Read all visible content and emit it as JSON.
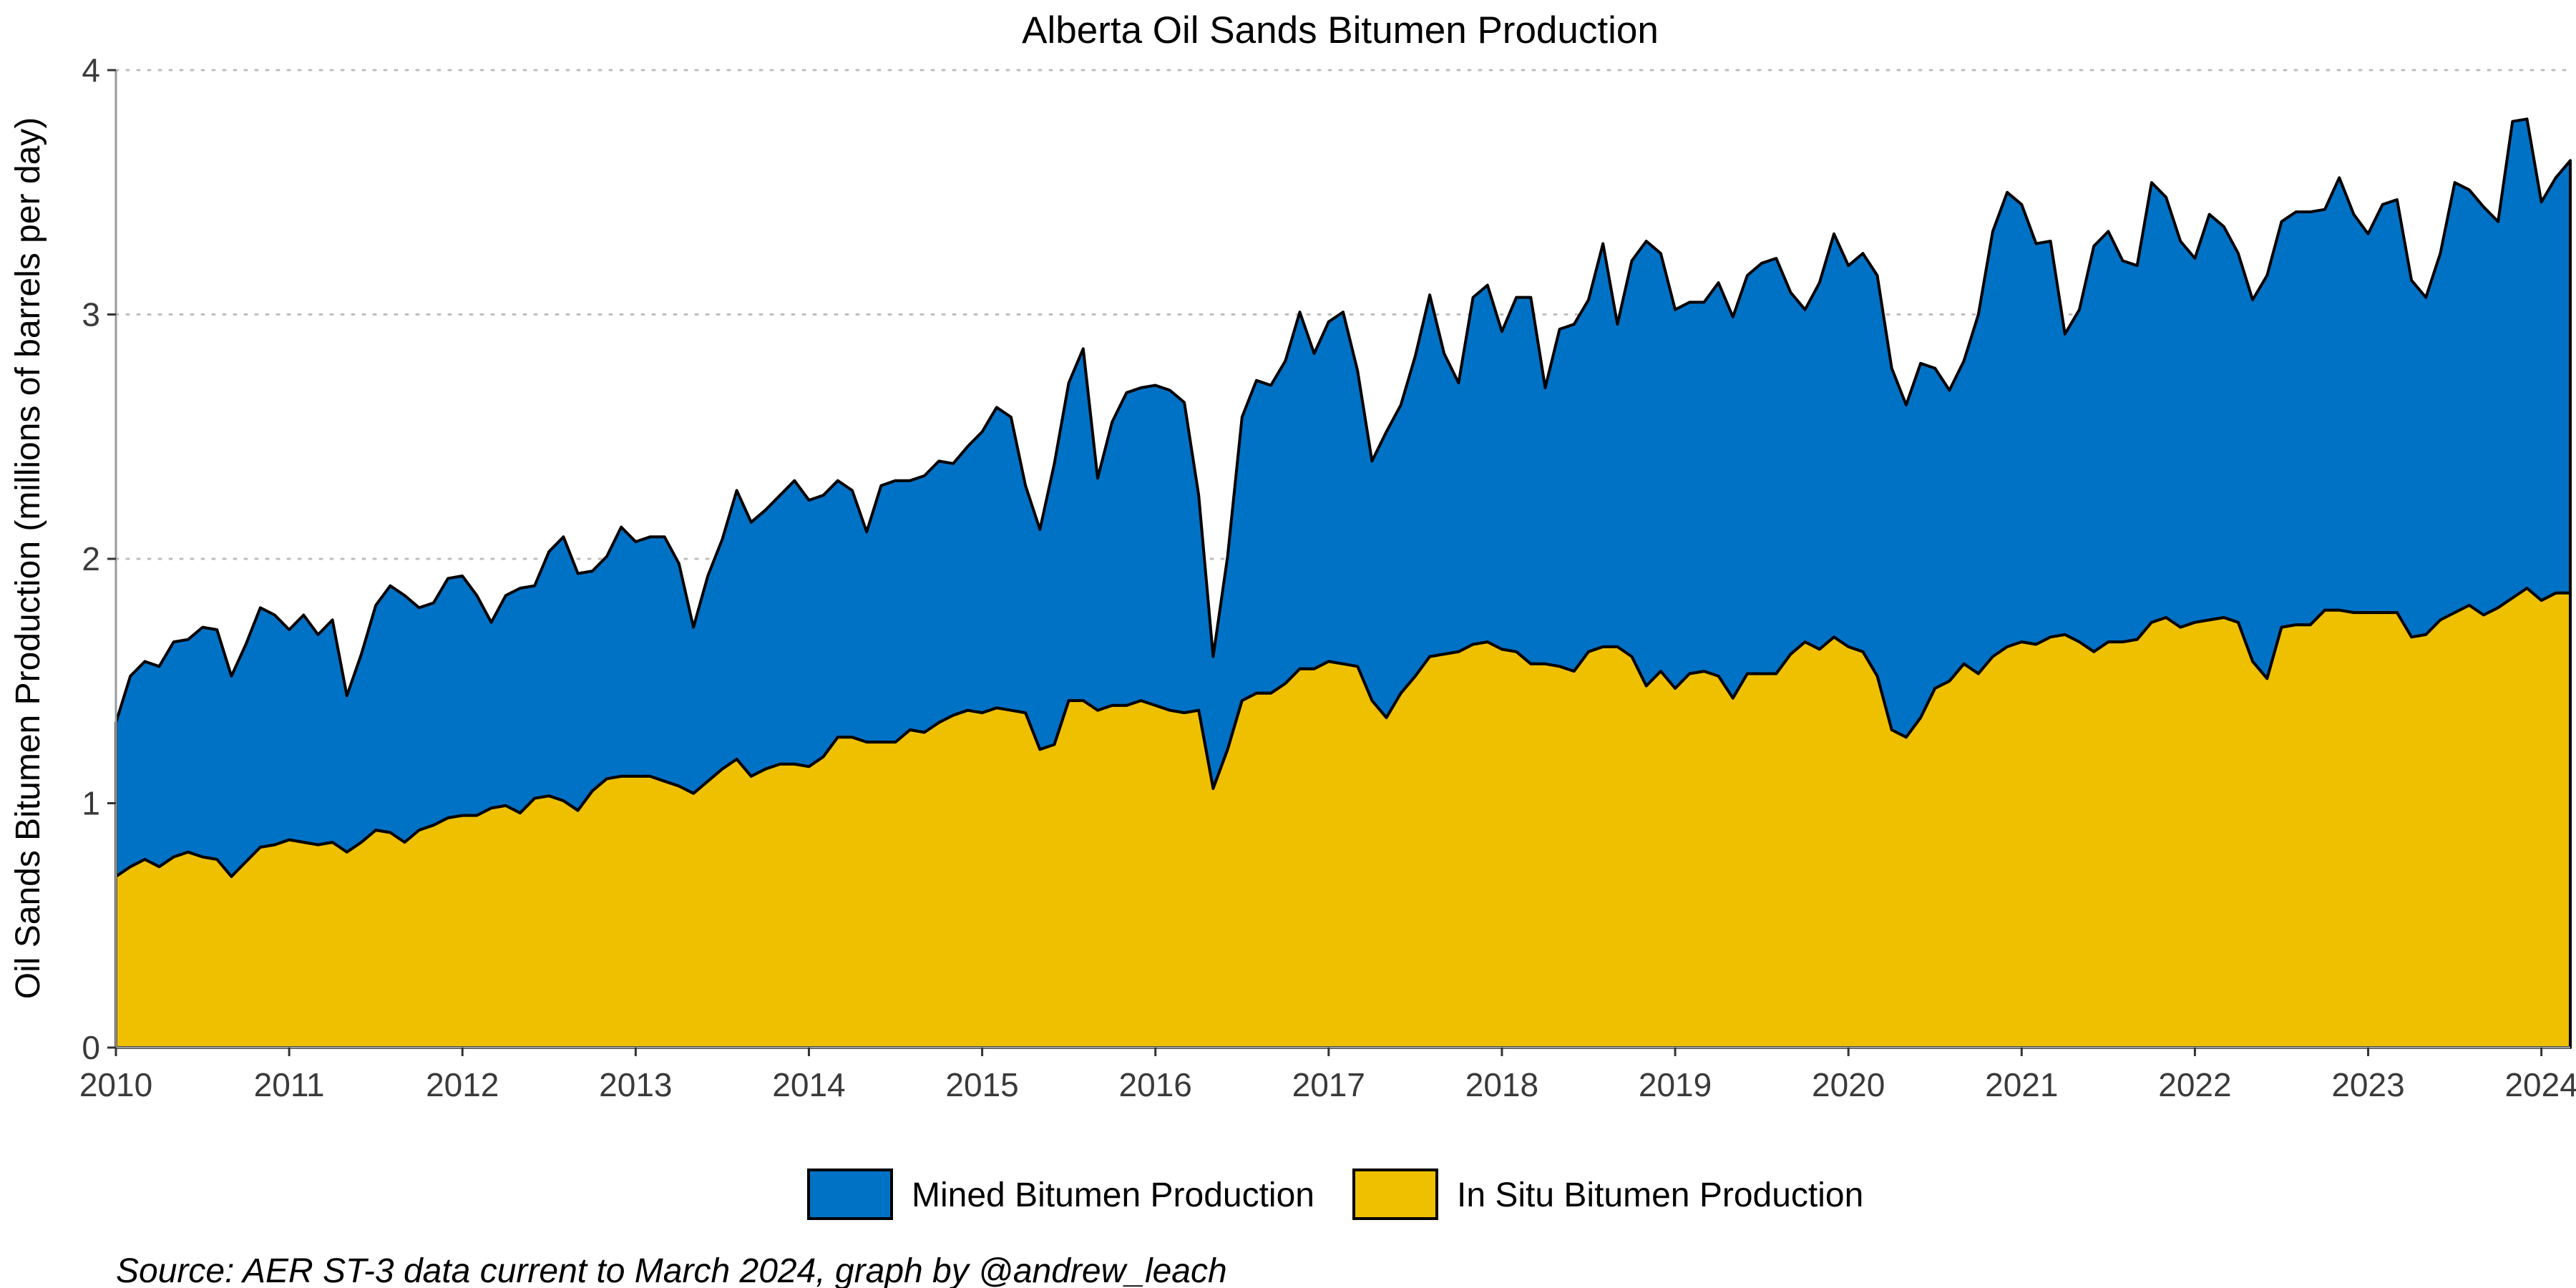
{
  "chart_data": {
    "type": "area",
    "stacked": true,
    "title": "Alberta Oil Sands Bitumen Production",
    "xlabel": "",
    "ylabel": "Oil Sands Bitumen Production (millions of barrels per day)",
    "xlim": [
      "2010-01",
      "2024-03"
    ],
    "ylim": [
      0,
      4
    ],
    "x_ticks": [
      "2010",
      "2011",
      "2012",
      "2013",
      "2014",
      "2015",
      "2016",
      "2017",
      "2018",
      "2019",
      "2020",
      "2021",
      "2022",
      "2023",
      "2024"
    ],
    "y_ticks": [
      "0",
      "1",
      "2",
      "3",
      "4"
    ],
    "grid": "horizontal dotted",
    "legend_position": "bottom",
    "legend": [
      "Mined Bitumen Production",
      "In Situ Bitumen Production"
    ],
    "caption": "Source: AER ST-3 data current to March 2024, graph by @andrew_leach",
    "colors": {
      "mined": "#0072C6",
      "in_situ": "#EFC000"
    },
    "x": [
      "2010-01",
      "2010-02",
      "2010-03",
      "2010-04",
      "2010-05",
      "2010-06",
      "2010-07",
      "2010-08",
      "2010-09",
      "2010-10",
      "2010-11",
      "2010-12",
      "2011-01",
      "2011-02",
      "2011-03",
      "2011-04",
      "2011-05",
      "2011-06",
      "2011-07",
      "2011-08",
      "2011-09",
      "2011-10",
      "2011-11",
      "2011-12",
      "2012-01",
      "2012-02",
      "2012-03",
      "2012-04",
      "2012-05",
      "2012-06",
      "2012-07",
      "2012-08",
      "2012-09",
      "2012-10",
      "2012-11",
      "2012-12",
      "2013-01",
      "2013-02",
      "2013-03",
      "2013-04",
      "2013-05",
      "2013-06",
      "2013-07",
      "2013-08",
      "2013-09",
      "2013-10",
      "2013-11",
      "2013-12",
      "2014-01",
      "2014-02",
      "2014-03",
      "2014-04",
      "2014-05",
      "2014-06",
      "2014-07",
      "2014-08",
      "2014-09",
      "2014-10",
      "2014-11",
      "2014-12",
      "2015-01",
      "2015-02",
      "2015-03",
      "2015-04",
      "2015-05",
      "2015-06",
      "2015-07",
      "2015-08",
      "2015-09",
      "2015-10",
      "2015-11",
      "2015-12",
      "2016-01",
      "2016-02",
      "2016-03",
      "2016-04",
      "2016-05",
      "2016-06",
      "2016-07",
      "2016-08",
      "2016-09",
      "2016-10",
      "2016-11",
      "2016-12",
      "2017-01",
      "2017-02",
      "2017-03",
      "2017-04",
      "2017-05",
      "2017-06",
      "2017-07",
      "2017-08",
      "2017-09",
      "2017-10",
      "2017-11",
      "2017-12",
      "2018-01",
      "2018-02",
      "2018-03",
      "2018-04",
      "2018-05",
      "2018-06",
      "2018-07",
      "2018-08",
      "2018-09",
      "2018-10",
      "2018-11",
      "2018-12",
      "2019-01",
      "2019-02",
      "2019-03",
      "2019-04",
      "2019-05",
      "2019-06",
      "2019-07",
      "2019-08",
      "2019-09",
      "2019-10",
      "2019-11",
      "2019-12",
      "2020-01",
      "2020-02",
      "2020-03",
      "2020-04",
      "2020-05",
      "2020-06",
      "2020-07",
      "2020-08",
      "2020-09",
      "2020-10",
      "2020-11",
      "2020-12",
      "2021-01",
      "2021-02",
      "2021-03",
      "2021-04",
      "2021-05",
      "2021-06",
      "2021-07",
      "2021-08",
      "2021-09",
      "2021-10",
      "2021-11",
      "2021-12",
      "2022-01",
      "2022-02",
      "2022-03",
      "2022-04",
      "2022-05",
      "2022-06",
      "2022-07",
      "2022-08",
      "2022-09",
      "2022-10",
      "2022-11",
      "2022-12",
      "2023-01",
      "2023-02",
      "2023-03",
      "2023-04",
      "2023-05",
      "2023-06",
      "2023-07",
      "2023-08",
      "2023-09",
      "2023-10",
      "2023-11",
      "2023-12",
      "2024-01",
      "2024-02",
      "2024-03"
    ],
    "series": [
      {
        "name": "In Situ Bitumen Production",
        "values": [
          0.7,
          0.74,
          0.77,
          0.74,
          0.78,
          0.8,
          0.78,
          0.77,
          0.7,
          0.76,
          0.82,
          0.83,
          0.85,
          0.84,
          0.83,
          0.84,
          0.8,
          0.84,
          0.89,
          0.88,
          0.84,
          0.89,
          0.91,
          0.94,
          0.95,
          0.95,
          0.98,
          0.99,
          0.96,
          1.02,
          1.03,
          1.01,
          0.97,
          1.05,
          1.1,
          1.11,
          1.11,
          1.11,
          1.09,
          1.07,
          1.04,
          1.09,
          1.14,
          1.18,
          1.11,
          1.14,
          1.16,
          1.16,
          1.15,
          1.19,
          1.27,
          1.27,
          1.25,
          1.25,
          1.25,
          1.3,
          1.29,
          1.33,
          1.36,
          1.38,
          1.37,
          1.39,
          1.38,
          1.37,
          1.22,
          1.24,
          1.42,
          1.42,
          1.38,
          1.4,
          1.4,
          1.42,
          1.4,
          1.38,
          1.37,
          1.38,
          1.06,
          1.22,
          1.42,
          1.45,
          1.45,
          1.49,
          1.55,
          1.55,
          1.58,
          1.57,
          1.56,
          1.42,
          1.35,
          1.45,
          1.52,
          1.6,
          1.61,
          1.62,
          1.65,
          1.66,
          1.63,
          1.62,
          1.57,
          1.57,
          1.56,
          1.54,
          1.62,
          1.64,
          1.64,
          1.6,
          1.48,
          1.54,
          1.47,
          1.53,
          1.54,
          1.52,
          1.43,
          1.53,
          1.53,
          1.53,
          1.61,
          1.66,
          1.63,
          1.68,
          1.64,
          1.62,
          1.52,
          1.3,
          1.27,
          1.35,
          1.47,
          1.5,
          1.57,
          1.53,
          1.6,
          1.64,
          1.66,
          1.65,
          1.68,
          1.69,
          1.66,
          1.62,
          1.66,
          1.66,
          1.67,
          1.74,
          1.76,
          1.72,
          1.74,
          1.75,
          1.76,
          1.74,
          1.58,
          1.51,
          1.72,
          1.73,
          1.73,
          1.79,
          1.79,
          1.78,
          1.78,
          1.78,
          1.78,
          1.68,
          1.69,
          1.75,
          1.78,
          1.81,
          1.77,
          1.8,
          1.84,
          1.88,
          1.83,
          1.86,
          1.86
        ]
      },
      {
        "name": "Mined Bitumen Production",
        "values": [
          0.63,
          0.78,
          0.81,
          0.82,
          0.88,
          0.87,
          0.94,
          0.94,
          0.82,
          0.89,
          0.98,
          0.94,
          0.86,
          0.93,
          0.86,
          0.91,
          0.64,
          0.77,
          0.92,
          1.01,
          1.01,
          0.91,
          0.91,
          0.98,
          0.98,
          0.9,
          0.76,
          0.86,
          0.92,
          0.87,
          1.0,
          1.08,
          0.97,
          0.9,
          0.91,
          1.02,
          0.96,
          0.98,
          1.0,
          0.91,
          0.68,
          0.84,
          0.94,
          1.1,
          1.04,
          1.06,
          1.1,
          1.16,
          1.09,
          1.07,
          1.05,
          1.01,
          0.86,
          1.05,
          1.07,
          1.02,
          1.05,
          1.07,
          1.03,
          1.08,
          1.15,
          1.23,
          1.2,
          0.93,
          0.9,
          1.15,
          1.3,
          1.44,
          0.95,
          1.16,
          1.28,
          1.28,
          1.31,
          1.31,
          1.27,
          0.88,
          0.54,
          0.79,
          1.16,
          1.28,
          1.26,
          1.32,
          1.46,
          1.29,
          1.39,
          1.44,
          1.21,
          0.98,
          1.17,
          1.18,
          1.31,
          1.48,
          1.23,
          1.1,
          1.42,
          1.46,
          1.3,
          1.45,
          1.5,
          1.13,
          1.38,
          1.42,
          1.44,
          1.65,
          1.32,
          1.62,
          1.82,
          1.71,
          1.55,
          1.52,
          1.51,
          1.61,
          1.56,
          1.63,
          1.68,
          1.7,
          1.48,
          1.36,
          1.5,
          1.65,
          1.56,
          1.63,
          1.64,
          1.48,
          1.36,
          1.45,
          1.31,
          1.19,
          1.24,
          1.47,
          1.74,
          1.86,
          1.79,
          1.64,
          1.62,
          1.23,
          1.36,
          1.66,
          1.68,
          1.56,
          1.53,
          1.8,
          1.72,
          1.58,
          1.49,
          1.66,
          1.6,
          1.51,
          1.48,
          1.65,
          1.66,
          1.69,
          1.69,
          1.64,
          1.77,
          1.63,
          1.55,
          1.67,
          1.69,
          1.46,
          1.38,
          1.5,
          1.76,
          1.7,
          1.67,
          1.58,
          1.95,
          1.92,
          1.63,
          1.7,
          1.77
        ]
      }
    ]
  }
}
